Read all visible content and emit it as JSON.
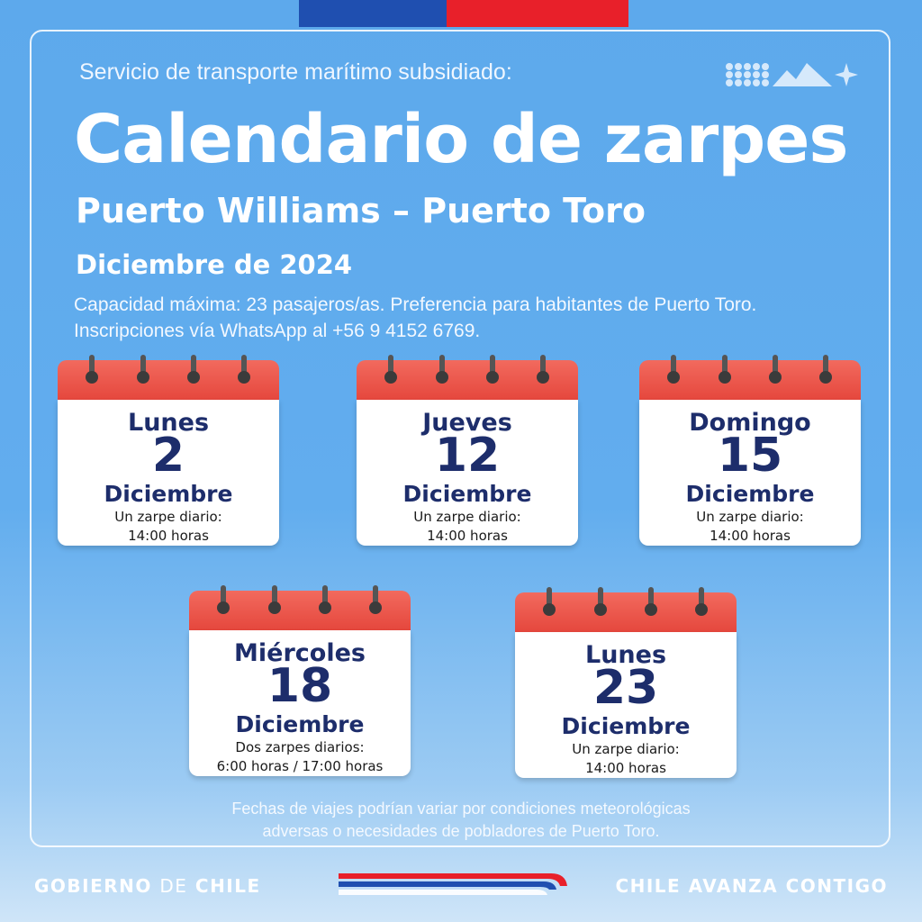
{
  "header": {
    "subtitle": "Servicio de transporte marítimo subsidiado:",
    "title": "Calendario de zarpes",
    "route": "Puerto Williams – Puerto Toro",
    "month": "Diciembre de 2024",
    "info_line1": "Capacidad máxima: 23 pasajeros/as. Preferencia para habitantes de Puerto Toro.",
    "info_line2": "Inscripciones vía WhatsApp al +56 9 4152 6769."
  },
  "calendars": [
    {
      "day": "Lunes",
      "number": "2",
      "month": "Diciembre",
      "note1": "Un zarpe diario:",
      "note2": "14:00 horas"
    },
    {
      "day": "Jueves",
      "number": "12",
      "month": "Diciembre",
      "note1": "Un zarpe diario:",
      "note2": "14:00 horas"
    },
    {
      "day": "Domingo",
      "number": "15",
      "month": "Diciembre",
      "note1": "Un zarpe diario:",
      "note2": "14:00 horas"
    },
    {
      "day": "Miércoles",
      "number": "18",
      "month": "Diciembre",
      "note1": "Dos zarpes diarios:",
      "note2": "6:00 horas / 17:00 horas"
    },
    {
      "day": "Lunes",
      "number": "23",
      "month": "Diciembre",
      "note1": "Un zarpe diario:",
      "note2": "14:00 horas"
    }
  ],
  "footer": {
    "note_line1": "Fechas de viajes podrían variar por condiciones meteorológicas",
    "note_line2": "adversas o necesidades de pobladores de Puerto Toro.",
    "gov_bold1": "GOBIERNO",
    "gov_light": "DE",
    "gov_bold2": "CHILE",
    "slogan": "CHILE AVANZA CONTIGO"
  },
  "colors": {
    "flag_blue": "#1f4fb0",
    "flag_red": "#e8202a",
    "calendar_header": "#e4443a",
    "calendar_text": "#1d2d6b"
  }
}
